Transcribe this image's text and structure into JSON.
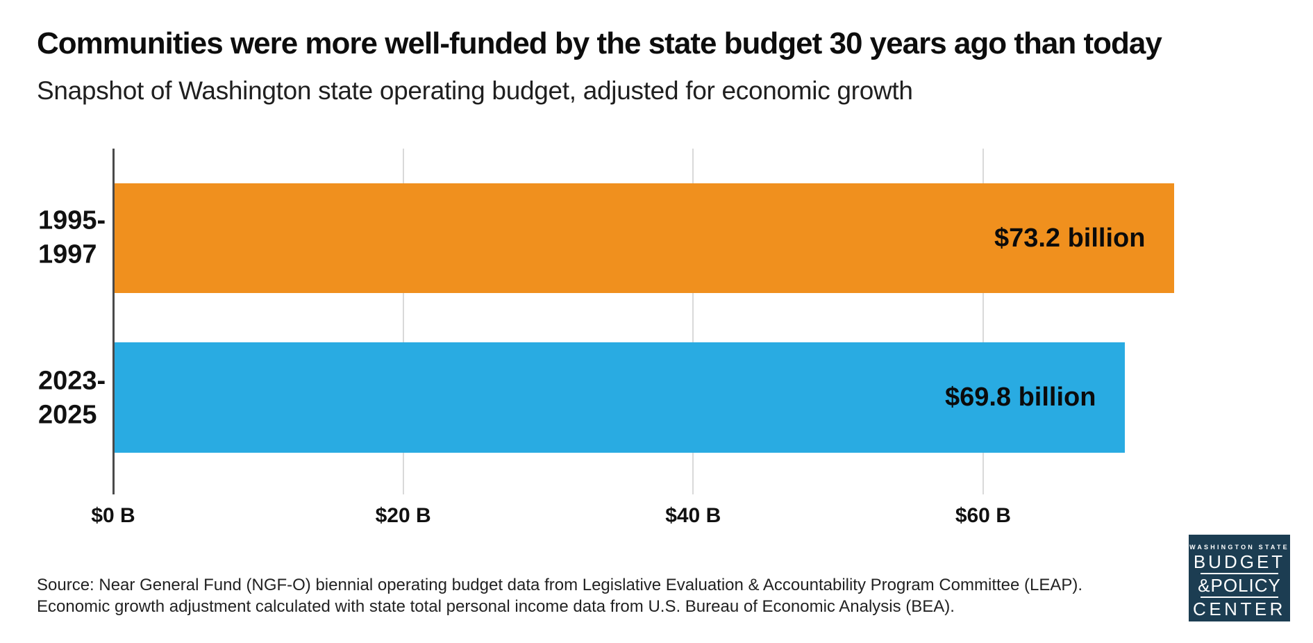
{
  "header": {
    "title": "Communities were more well-funded by the state budget 30 years ago than today",
    "subtitle": "Snapshot of Washington state operating budget, adjusted for economic growth"
  },
  "chart_data": {
    "type": "bar",
    "orientation": "horizontal",
    "title": "Communities were more well-funded by the state budget 30 years ago than today",
    "subtitle": "Snapshot of Washington state operating budget, adjusted for economic growth",
    "categories": [
      "1995-1997",
      "2023-2025"
    ],
    "values": [
      73.2,
      69.8
    ],
    "unit": "billions of dollars",
    "rows": [
      {
        "label": "1995-\n1997",
        "value": 73.2,
        "value_label": "$73.2 billion",
        "color": "#F0901E"
      },
      {
        "label": "2023-\n2025",
        "value": 69.8,
        "value_label": "$69.8 billion",
        "color": "#29ABE2"
      }
    ],
    "xlabel": "",
    "ylabel": "",
    "xlim": [
      0,
      77.2
    ],
    "ticks": [
      {
        "value": 0,
        "label": "$0 B"
      },
      {
        "value": 20,
        "label": "$20 B"
      },
      {
        "value": 40,
        "label": "$40 B"
      },
      {
        "value": 60,
        "label": "$60 B"
      }
    ],
    "grid": "vertical-gridlines-on",
    "legend": "none"
  },
  "source": {
    "line1": "Source: Near General Fund (NGF-O) biennial operating budget data from Legislative Evaluation & Accountability Program Committee (LEAP).",
    "line2": "Economic growth adjustment calculated with state total personal income data from U.S. Bureau of Economic Analysis (BEA)."
  },
  "logo": {
    "eyebrow": "WASHINGTON STATE",
    "line1": "BUDGET",
    "line2": "&POLICY",
    "line3": "CENTER",
    "bg_color": "#1C3D52",
    "text_color": "#FFFFFF"
  },
  "colors": {
    "bar_1995_1997": "#F0901E",
    "bar_2023_2025": "#29ABE2",
    "gridline": "#D9D9D9",
    "axis_line": "#4A4A4A",
    "text": "#111111",
    "background": "#FFFFFF"
  }
}
